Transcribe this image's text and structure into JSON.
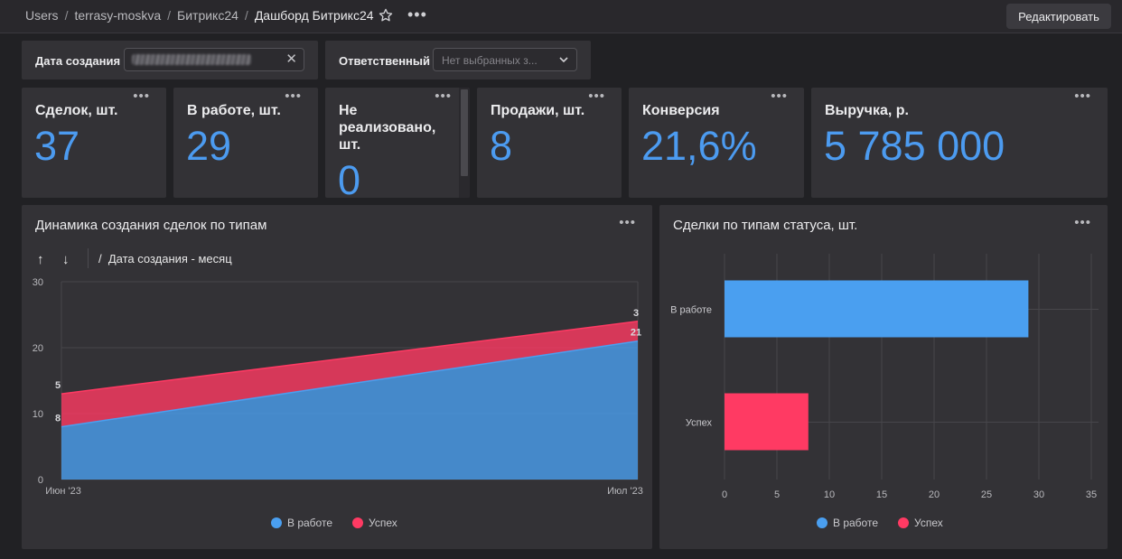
{
  "breadcrumbs": {
    "items": [
      "Users",
      "terrasy-moskva",
      "Битрикс24"
    ],
    "current": "Дашборд Битрикс24"
  },
  "toolbar": {
    "edit_label": "Редактировать"
  },
  "filters": {
    "created_label": "Дата создания",
    "responsible_label": "Ответственный",
    "responsible_placeholder": "Нет выбранных з..."
  },
  "kpis": [
    {
      "title": "Сделок, шт.",
      "value": "37"
    },
    {
      "title": "В работе, шт.",
      "value": "29"
    },
    {
      "title": "Не реализовано, шт.",
      "value": "0"
    },
    {
      "title": "Продажи, шт.",
      "value": "8"
    },
    {
      "title": "Конверсия",
      "value": "21,6%"
    },
    {
      "title": "Выручка, р.",
      "value": "5 785 000"
    }
  ],
  "colors": {
    "blue": "#4a9ff0",
    "red": "#ff3a63",
    "accent": "#4c9bf0"
  },
  "area_panel": {
    "title": "Динамика создания сделок по типам",
    "drill_label": "Дата создания - месяц"
  },
  "bar_panel": {
    "title": "Сделки по типам статуса, шт."
  },
  "chart_data": [
    {
      "type": "area",
      "title": "Динамика создания сделок по типам",
      "stacked": true,
      "categories": [
        "Июн '23",
        "Июл '23"
      ],
      "series": [
        {
          "name": "В работе",
          "values": [
            8,
            21
          ],
          "color": "#4a9ff0"
        },
        {
          "name": "Успех",
          "values": [
            5,
            3
          ],
          "color": "#ff3a63"
        }
      ],
      "ylim": [
        0,
        30
      ],
      "yticks": [
        0,
        10,
        20,
        30
      ],
      "legend": "bottom"
    },
    {
      "type": "bar",
      "orientation": "horizontal",
      "title": "Сделки по типам статуса, шт.",
      "categories": [
        "В работе",
        "Успех"
      ],
      "values": [
        29,
        8
      ],
      "colors": [
        "#4a9ff0",
        "#ff3a63"
      ],
      "xlim": [
        0,
        35
      ],
      "xticks": [
        0,
        5,
        10,
        15,
        20,
        25,
        30,
        35
      ],
      "legend_entries": [
        "В работе",
        "Успех"
      ],
      "legend": "bottom"
    }
  ]
}
